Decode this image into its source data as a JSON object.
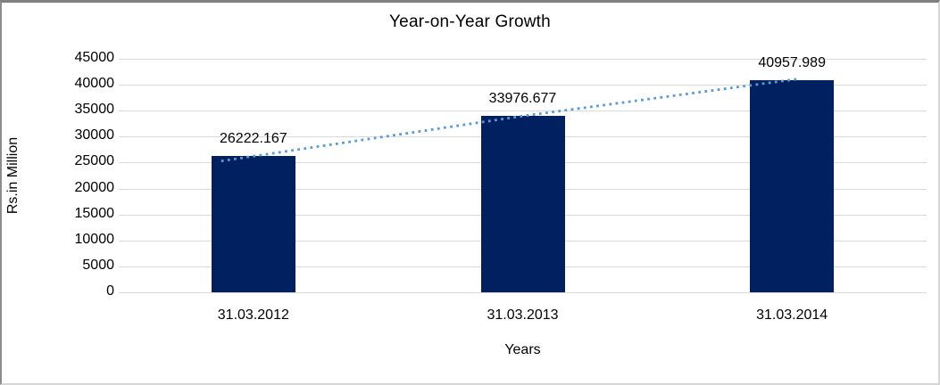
{
  "chart_data": {
    "type": "bar",
    "title": "Year-on-Year Growth",
    "categories": [
      "31.03.2012",
      "31.03.2013",
      "31.03.2014"
    ],
    "values": [
      26222.167,
      33976.677,
      40957.989
    ],
    "data_labels": [
      "26222.167",
      "33976.677",
      "40957.989"
    ],
    "xlabel": "Years",
    "ylabel": "Rs.in Million",
    "ylim": [
      0,
      45000
    ],
    "ytick_step": 5000,
    "ytick_labels": [
      "0",
      "5000",
      "10000",
      "15000",
      "20000",
      "25000",
      "30000",
      "35000",
      "40000",
      "45000"
    ],
    "grid": "horizontal-major",
    "legend_position": "none",
    "has_trendline": true,
    "trendline_style": "dotted",
    "colors": {
      "bar": "#002060",
      "trendline": "#5B9BD5",
      "gridline": "#D9D9D9",
      "text": "#000000"
    }
  }
}
